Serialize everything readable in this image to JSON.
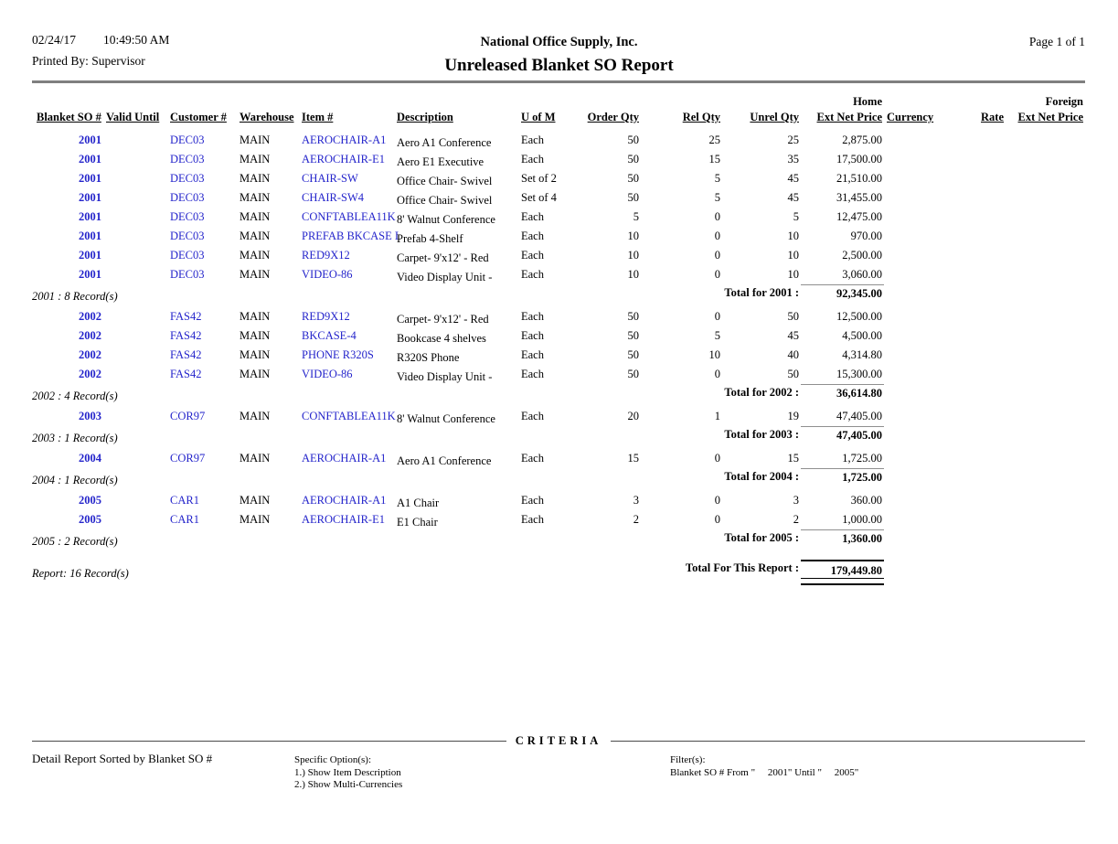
{
  "header": {
    "date": "02/24/17",
    "time": "10:49:50 AM",
    "printed_by": "Printed By: Supervisor",
    "company": "National Office Supply, Inc.",
    "title": "Unreleased Blanket SO Report",
    "page_label": "Page 1 of  1"
  },
  "table": {
    "super_headers": {
      "home": "Home",
      "foreign": "Foreign"
    },
    "columns": [
      {
        "key": "so",
        "label": "Blanket SO #"
      },
      {
        "key": "valid",
        "label": "Valid Until"
      },
      {
        "key": "customer",
        "label": "Customer #"
      },
      {
        "key": "warehouse",
        "label": "Warehouse"
      },
      {
        "key": "item",
        "label": "Item #"
      },
      {
        "key": "desc",
        "label": "Description"
      },
      {
        "key": "uom",
        "label": "U of M"
      },
      {
        "key": "order",
        "label": "Order Qty"
      },
      {
        "key": "rel",
        "label": "Rel Qty"
      },
      {
        "key": "unrel",
        "label": "Unrel Qty"
      },
      {
        "key": "price",
        "label": "Ext Net Price"
      },
      {
        "key": "currency",
        "label": "Currency"
      },
      {
        "key": "rate",
        "label": "Rate"
      },
      {
        "key": "foreign",
        "label": "Ext Net Price"
      }
    ],
    "groups": [
      {
        "rows": [
          {
            "so": "2001",
            "customer": "DEC03",
            "warehouse": "MAIN",
            "item": "AEROCHAIR-A1",
            "desc": "Aero A1 Conference",
            "uom": "Each",
            "order": "50",
            "rel": "25",
            "unrel": "25",
            "price": "2,875.00"
          },
          {
            "so": "2001",
            "customer": "DEC03",
            "warehouse": "MAIN",
            "item": "AEROCHAIR-E1",
            "desc": "Aero E1 Executive",
            "uom": "Each",
            "order": "50",
            "rel": "15",
            "unrel": "35",
            "price": "17,500.00"
          },
          {
            "so": "2001",
            "customer": "DEC03",
            "warehouse": "MAIN",
            "item": "CHAIR-SW",
            "desc": "Office Chair- Swivel",
            "uom": "Set of 2",
            "order": "50",
            "rel": "5",
            "unrel": "45",
            "price": "21,510.00"
          },
          {
            "so": "2001",
            "customer": "DEC03",
            "warehouse": "MAIN",
            "item": "CHAIR-SW4",
            "desc": "Office Chair- Swivel",
            "uom": "Set of 4",
            "order": "50",
            "rel": "5",
            "unrel": "45",
            "price": "31,455.00"
          },
          {
            "so": "2001",
            "customer": "DEC03",
            "warehouse": "MAIN",
            "item": "CONFTABLEA11K",
            "desc": "8' Walnut Conference",
            "uom": "Each",
            "order": "5",
            "rel": "0",
            "unrel": "5",
            "price": "12,475.00"
          },
          {
            "so": "2001",
            "customer": "DEC03",
            "warehouse": "MAIN",
            "item": "PREFAB BKCASE I",
            "desc": "Prefab 4-Shelf",
            "uom": "Each",
            "order": "10",
            "rel": "0",
            "unrel": "10",
            "price": "970.00"
          },
          {
            "so": "2001",
            "customer": "DEC03",
            "warehouse": "MAIN",
            "item": "RED9X12",
            "desc": "Carpet- 9'x12' - Red",
            "uom": "Each",
            "order": "10",
            "rel": "0",
            "unrel": "10",
            "price": "2,500.00"
          },
          {
            "so": "2001",
            "customer": "DEC03",
            "warehouse": "MAIN",
            "item": "VIDEO-86",
            "desc": "Video Display Unit -",
            "uom": "Each",
            "order": "10",
            "rel": "0",
            "unrel": "10",
            "price": "3,060.00"
          }
        ],
        "records_label": "2001 : 8 Record(s)",
        "total_label": "Total for 2001 :",
        "total_value": "92,345.00"
      },
      {
        "rows": [
          {
            "so": "2002",
            "customer": "FAS42",
            "warehouse": "MAIN",
            "item": "RED9X12",
            "desc": "Carpet- 9'x12' - Red",
            "uom": "Each",
            "order": "50",
            "rel": "0",
            "unrel": "50",
            "price": "12,500.00"
          },
          {
            "so": "2002",
            "customer": "FAS42",
            "warehouse": "MAIN",
            "item": "BKCASE-4",
            "desc": "Bookcase 4 shelves",
            "uom": "Each",
            "order": "50",
            "rel": "5",
            "unrel": "45",
            "price": "4,500.00"
          },
          {
            "so": "2002",
            "customer": "FAS42",
            "warehouse": "MAIN",
            "item": "PHONE R320S",
            "desc": "R320S Phone",
            "uom": "Each",
            "order": "50",
            "rel": "10",
            "unrel": "40",
            "price": "4,314.80"
          },
          {
            "so": "2002",
            "customer": "FAS42",
            "warehouse": "MAIN",
            "item": "VIDEO-86",
            "desc": "Video Display Unit -",
            "uom": "Each",
            "order": "50",
            "rel": "0",
            "unrel": "50",
            "price": "15,300.00"
          }
        ],
        "records_label": "2002 : 4 Record(s)",
        "total_label": "Total for 2002 :",
        "total_value": "36,614.80"
      },
      {
        "rows": [
          {
            "so": "2003",
            "customer": "COR97",
            "warehouse": "MAIN",
            "item": "CONFTABLEA11K",
            "desc": "8' Walnut Conference",
            "uom": "Each",
            "order": "20",
            "rel": "1",
            "unrel": "19",
            "price": "47,405.00"
          }
        ],
        "records_label": "2003 : 1 Record(s)",
        "total_label": "Total for 2003 :",
        "total_value": "47,405.00"
      },
      {
        "rows": [
          {
            "so": "2004",
            "customer": "COR97",
            "warehouse": "MAIN",
            "item": "AEROCHAIR-A1",
            "desc": "Aero A1 Conference",
            "uom": "Each",
            "order": "15",
            "rel": "0",
            "unrel": "15",
            "price": "1,725.00"
          }
        ],
        "records_label": "2004 : 1 Record(s)",
        "total_label": "Total for 2004 :",
        "total_value": "1,725.00"
      },
      {
        "rows": [
          {
            "so": "2005",
            "customer": "CAR1",
            "warehouse": "MAIN",
            "item": "AEROCHAIR-A1",
            "desc": "A1 Chair",
            "uom": "Each",
            "order": "3",
            "rel": "0",
            "unrel": "3",
            "price": "360.00"
          },
          {
            "so": "2005",
            "customer": "CAR1",
            "warehouse": "MAIN",
            "item": "AEROCHAIR-E1",
            "desc": "E1 Chair",
            "uom": "Each",
            "order": "2",
            "rel": "0",
            "unrel": "2",
            "price": "1,000.00"
          }
        ],
        "records_label": "2005 : 2 Record(s)",
        "total_label": "Total for 2005 :",
        "total_value": "1,360.00"
      }
    ],
    "report": {
      "records_label": "Report: 16 Record(s)",
      "total_label": "Total For This Report :",
      "total_value": "179,449.80"
    }
  },
  "footer": {
    "criteria_label": "CRITERIA",
    "sort_text": "Detail Report Sorted by Blanket SO #",
    "options_title": "Specific Option(s):",
    "options": [
      "1.) Show Item Description",
      "2.) Show Multi-Currencies"
    ],
    "filters_title": "Filter(s):",
    "filter_line": "Blanket SO # From \"     2001\" Until \"     2005\""
  }
}
